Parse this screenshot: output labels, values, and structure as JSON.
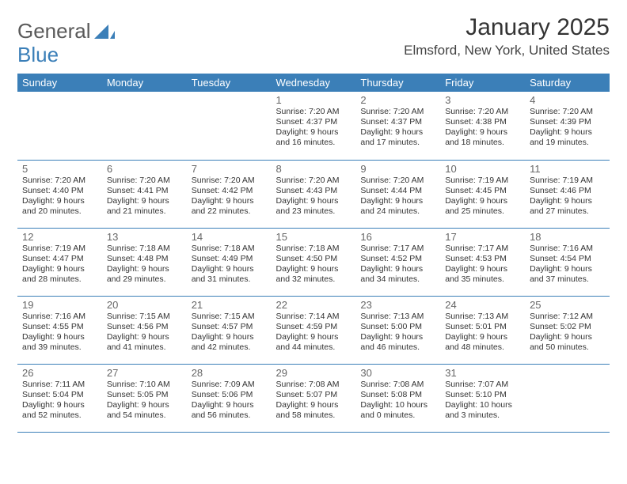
{
  "brand": {
    "part1": "General",
    "part2": "Blue"
  },
  "title": "January 2025",
  "location": "Elmsford, New York, United States",
  "header_bg": "#3b7fb8",
  "header_fg": "#ffffff",
  "row_border": "#3b7fb8",
  "daynames": [
    "Sunday",
    "Monday",
    "Tuesday",
    "Wednesday",
    "Thursday",
    "Friday",
    "Saturday"
  ],
  "weeks": [
    [
      null,
      null,
      null,
      {
        "d": "1",
        "sr": "7:20 AM",
        "ss": "4:37 PM",
        "dl": "9 hours and 16 minutes."
      },
      {
        "d": "2",
        "sr": "7:20 AM",
        "ss": "4:37 PM",
        "dl": "9 hours and 17 minutes."
      },
      {
        "d": "3",
        "sr": "7:20 AM",
        "ss": "4:38 PM",
        "dl": "9 hours and 18 minutes."
      },
      {
        "d": "4",
        "sr": "7:20 AM",
        "ss": "4:39 PM",
        "dl": "9 hours and 19 minutes."
      }
    ],
    [
      {
        "d": "5",
        "sr": "7:20 AM",
        "ss": "4:40 PM",
        "dl": "9 hours and 20 minutes."
      },
      {
        "d": "6",
        "sr": "7:20 AM",
        "ss": "4:41 PM",
        "dl": "9 hours and 21 minutes."
      },
      {
        "d": "7",
        "sr": "7:20 AM",
        "ss": "4:42 PM",
        "dl": "9 hours and 22 minutes."
      },
      {
        "d": "8",
        "sr": "7:20 AM",
        "ss": "4:43 PM",
        "dl": "9 hours and 23 minutes."
      },
      {
        "d": "9",
        "sr": "7:20 AM",
        "ss": "4:44 PM",
        "dl": "9 hours and 24 minutes."
      },
      {
        "d": "10",
        "sr": "7:19 AM",
        "ss": "4:45 PM",
        "dl": "9 hours and 25 minutes."
      },
      {
        "d": "11",
        "sr": "7:19 AM",
        "ss": "4:46 PM",
        "dl": "9 hours and 27 minutes."
      }
    ],
    [
      {
        "d": "12",
        "sr": "7:19 AM",
        "ss": "4:47 PM",
        "dl": "9 hours and 28 minutes."
      },
      {
        "d": "13",
        "sr": "7:18 AM",
        "ss": "4:48 PM",
        "dl": "9 hours and 29 minutes."
      },
      {
        "d": "14",
        "sr": "7:18 AM",
        "ss": "4:49 PM",
        "dl": "9 hours and 31 minutes."
      },
      {
        "d": "15",
        "sr": "7:18 AM",
        "ss": "4:50 PM",
        "dl": "9 hours and 32 minutes."
      },
      {
        "d": "16",
        "sr": "7:17 AM",
        "ss": "4:52 PM",
        "dl": "9 hours and 34 minutes."
      },
      {
        "d": "17",
        "sr": "7:17 AM",
        "ss": "4:53 PM",
        "dl": "9 hours and 35 minutes."
      },
      {
        "d": "18",
        "sr": "7:16 AM",
        "ss": "4:54 PM",
        "dl": "9 hours and 37 minutes."
      }
    ],
    [
      {
        "d": "19",
        "sr": "7:16 AM",
        "ss": "4:55 PM",
        "dl": "9 hours and 39 minutes."
      },
      {
        "d": "20",
        "sr": "7:15 AM",
        "ss": "4:56 PM",
        "dl": "9 hours and 41 minutes."
      },
      {
        "d": "21",
        "sr": "7:15 AM",
        "ss": "4:57 PM",
        "dl": "9 hours and 42 minutes."
      },
      {
        "d": "22",
        "sr": "7:14 AM",
        "ss": "4:59 PM",
        "dl": "9 hours and 44 minutes."
      },
      {
        "d": "23",
        "sr": "7:13 AM",
        "ss": "5:00 PM",
        "dl": "9 hours and 46 minutes."
      },
      {
        "d": "24",
        "sr": "7:13 AM",
        "ss": "5:01 PM",
        "dl": "9 hours and 48 minutes."
      },
      {
        "d": "25",
        "sr": "7:12 AM",
        "ss": "5:02 PM",
        "dl": "9 hours and 50 minutes."
      }
    ],
    [
      {
        "d": "26",
        "sr": "7:11 AM",
        "ss": "5:04 PM",
        "dl": "9 hours and 52 minutes."
      },
      {
        "d": "27",
        "sr": "7:10 AM",
        "ss": "5:05 PM",
        "dl": "9 hours and 54 minutes."
      },
      {
        "d": "28",
        "sr": "7:09 AM",
        "ss": "5:06 PM",
        "dl": "9 hours and 56 minutes."
      },
      {
        "d": "29",
        "sr": "7:08 AM",
        "ss": "5:07 PM",
        "dl": "9 hours and 58 minutes."
      },
      {
        "d": "30",
        "sr": "7:08 AM",
        "ss": "5:08 PM",
        "dl": "10 hours and 0 minutes."
      },
      {
        "d": "31",
        "sr": "7:07 AM",
        "ss": "5:10 PM",
        "dl": "10 hours and 3 minutes."
      },
      null
    ]
  ],
  "labels": {
    "sunrise": "Sunrise:",
    "sunset": "Sunset:",
    "daylight": "Daylight:"
  }
}
